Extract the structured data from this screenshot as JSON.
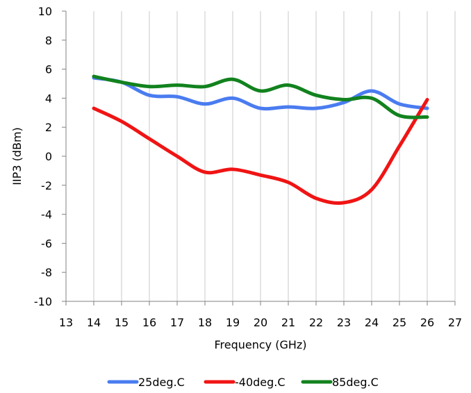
{
  "chart_data": {
    "type": "line",
    "xlabel": "Frequency (GHz)",
    "ylabel": "IIP3 (dBm)",
    "xlim": [
      13,
      27
    ],
    "ylim": [
      -10,
      10
    ],
    "xticks": [
      13,
      14,
      15,
      16,
      17,
      18,
      19,
      20,
      21,
      22,
      23,
      24,
      25,
      26,
      27
    ],
    "yticks": [
      -10,
      -8,
      -6,
      -4,
      -2,
      0,
      2,
      4,
      6,
      8,
      10
    ],
    "grid": "vertical",
    "legend_position": "bottom",
    "x": [
      14,
      15,
      16,
      17,
      18,
      19,
      20,
      21,
      22,
      23,
      24,
      25,
      26
    ],
    "series": [
      {
        "name": "25deg.C",
        "color": "#4a7cf0",
        "values": [
          5.4,
          5.1,
          4.2,
          4.1,
          3.6,
          4.0,
          3.3,
          3.4,
          3.3,
          3.7,
          4.5,
          3.6,
          3.3
        ]
      },
      {
        "name": "-40deg.C",
        "color": "#f01414",
        "values": [
          3.3,
          2.4,
          1.2,
          0.0,
          -1.1,
          -0.9,
          -1.3,
          -1.8,
          -2.9,
          -3.2,
          -2.3,
          0.7,
          3.9
        ]
      },
      {
        "name": "85deg.C",
        "color": "#12821e",
        "values": [
          5.5,
          5.1,
          4.8,
          4.9,
          4.8,
          5.3,
          4.5,
          4.9,
          4.2,
          3.9,
          4.0,
          2.8,
          2.7
        ]
      }
    ]
  }
}
